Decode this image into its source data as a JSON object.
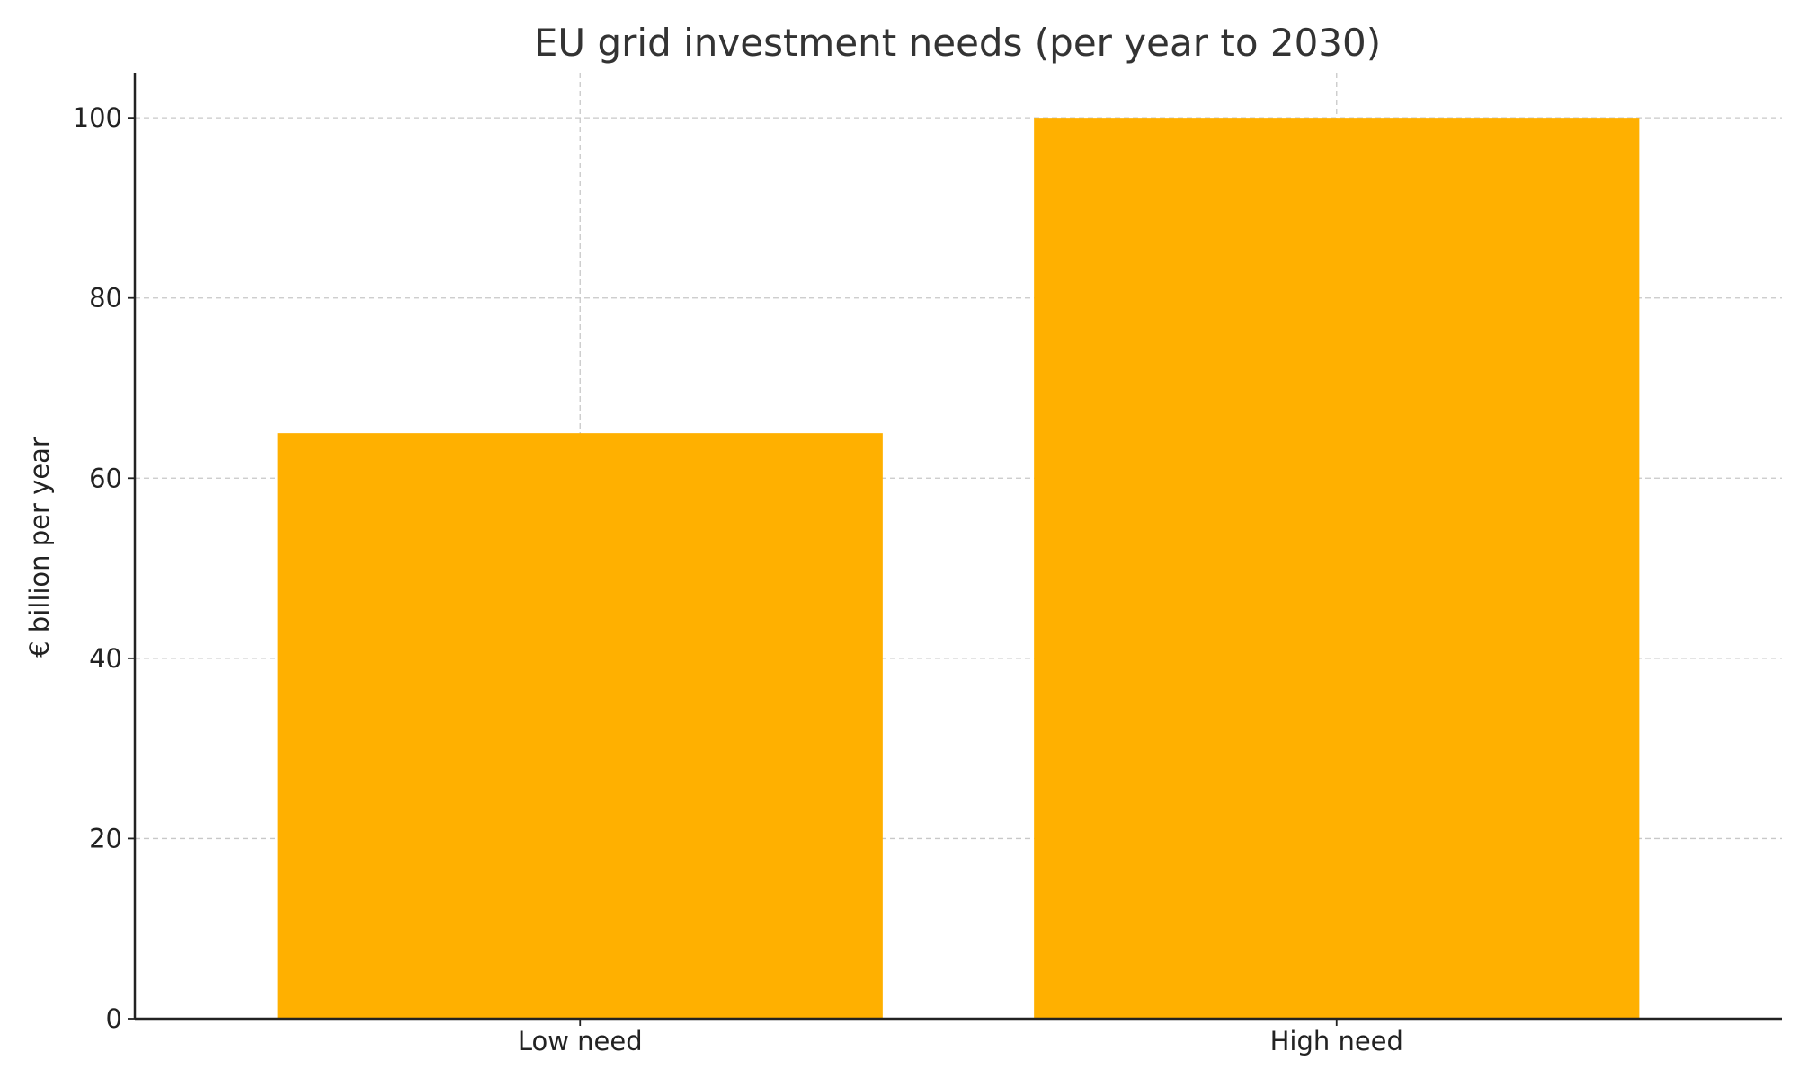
{
  "chart_data": {
    "type": "bar",
    "title": "EU grid investment needs (per year to 2030)",
    "xlabel": "",
    "ylabel": "€ billion per year",
    "categories": [
      "Low need",
      "High need"
    ],
    "values": [
      65,
      100
    ],
    "ylim": [
      0,
      105
    ],
    "yticks": [
      0,
      20,
      40,
      60,
      80,
      100
    ],
    "bar_color": "#FFB000",
    "grid": true,
    "legend": "none"
  }
}
